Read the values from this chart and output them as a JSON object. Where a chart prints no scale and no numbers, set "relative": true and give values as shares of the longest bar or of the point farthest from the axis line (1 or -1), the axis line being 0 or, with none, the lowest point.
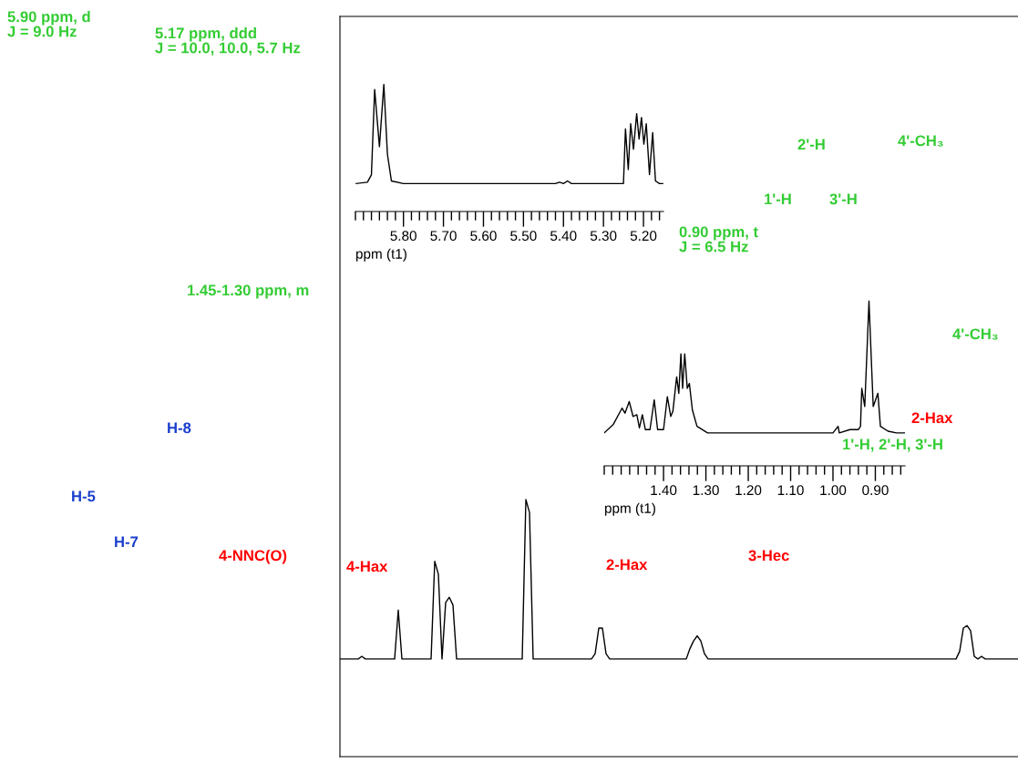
{
  "chart_data": [
    {
      "type": "line",
      "relative": true,
      "tick_labels": false,
      "color": "#000000",
      "categories": [
        null,
        null,
        null,
        null,
        null,
        null,
        null,
        null,
        null,
        null,
        null,
        null,
        null,
        null,
        null,
        null,
        null,
        null,
        null,
        null,
        null,
        null,
        null,
        null,
        null,
        null,
        null,
        null,
        null,
        null,
        null,
        null,
        null,
        null,
        null,
        null,
        null,
        null,
        null,
        null,
        null,
        null,
        null,
        null,
        null,
        null,
        null,
        null,
        null,
        null,
        null,
        null,
        null,
        null,
        null,
        null,
        null,
        null,
        null,
        null,
        null,
        null,
        null,
        null,
        null,
        null,
        null,
        null,
        null,
        null,
        null,
        null,
        null,
        null,
        null,
        null,
        null,
        null,
        null,
        null,
        null,
        null,
        null,
        null,
        null,
        null,
        null,
        null,
        null,
        null,
        null,
        null,
        null,
        null,
        null,
        null,
        null,
        null,
        null,
        null,
        null,
        null,
        null,
        null,
        null,
        null,
        null,
        null,
        null,
        null,
        null,
        null,
        null,
        null,
        null,
        null,
        null,
        null,
        null,
        null,
        null,
        null,
        null,
        null,
        null,
        null,
        null,
        null,
        null,
        null,
        null,
        null,
        null,
        null,
        null,
        null,
        null,
        null,
        null,
        null,
        null,
        null,
        null,
        null,
        null,
        null,
        null,
        null,
        null,
        null,
        null,
        null,
        null,
        null,
        null,
        null,
        null,
        null,
        null,
        null,
        null,
        null,
        null,
        null,
        null,
        null,
        null,
        null,
        null,
        null,
        null,
        null,
        null,
        null,
        null,
        null,
        null,
        null,
        null,
        null,
        null,
        null,
        null,
        null,
        null,
        null,
        null
      ],
      "values": [
        0.38,
        0.38,
        0.38,
        0.38,
        0.38,
        0.38,
        0.39,
        0.38,
        0.38,
        0.38,
        0.38,
        0.38,
        0.38,
        0.38,
        0.38,
        0.38,
        0.57,
        0.38,
        0.38,
        0.38,
        0.38,
        0.38,
        0.38,
        0.38,
        0.38,
        0.38,
        0.76,
        0.71,
        0.38,
        0.6,
        0.62,
        0.59,
        0.38,
        0.38,
        0.38,
        0.38,
        0.38,
        0.38,
        0.38,
        0.38,
        0.38,
        0.38,
        0.38,
        0.38,
        0.38,
        0.38,
        0.38,
        0.38,
        0.38,
        0.38,
        0.38,
        1.0,
        0.95,
        0.38,
        0.38,
        0.38,
        0.38,
        0.38,
        0.38,
        0.38,
        0.38,
        0.38,
        0.38,
        0.38,
        0.38,
        0.38,
        0.38,
        0.38,
        0.38,
        0.38,
        0.4,
        0.5,
        0.5,
        0.4,
        0.38,
        0.38,
        0.38,
        0.38,
        0.38,
        0.38,
        0.38,
        0.38,
        0.38,
        0.38,
        0.38,
        0.38,
        0.38,
        0.38,
        0.38,
        0.38,
        0.38,
        0.38,
        0.38,
        0.38,
        0.38,
        0.38,
        0.42,
        0.45,
        0.47,
        0.45,
        0.4,
        0.38,
        0.38,
        0.38,
        0.38,
        0.38,
        0.38,
        0.38,
        0.38,
        0.38,
        0.38,
        0.38,
        0.38,
        0.38,
        0.38,
        0.38,
        0.38,
        0.38,
        0.38,
        0.38,
        0.38,
        0.38,
        0.38,
        0.38,
        0.38,
        0.38,
        0.38,
        0.38,
        0.38,
        0.38,
        0.38,
        0.38,
        0.38,
        0.38,
        0.38,
        0.38,
        0.38,
        0.38,
        0.38,
        0.38,
        0.38,
        0.38,
        0.38,
        0.38,
        0.38,
        0.38,
        0.38,
        0.38,
        0.38,
        0.38,
        0.38,
        0.38,
        0.38,
        0.38,
        0.38,
        0.38,
        0.38,
        0.38,
        0.38,
        0.38,
        0.38,
        0.38,
        0.38,
        0.38,
        0.38,
        0.38,
        0.38,
        0.38,
        0.38,
        0.38,
        0.41,
        0.5,
        0.51,
        0.49,
        0.39,
        0.38,
        0.39,
        0.38,
        0.38,
        0.38,
        0.38,
        0.38,
        0.38,
        0.38,
        0.38,
        0.38,
        0.38
      ],
      "annotations": [
        "5.90 ppm, d\nJ = 9.0 Hz",
        "5.17 ppm, ddd\nJ = 10.0, 10.0, 5.7 Hz",
        "2'-H",
        "4'-CH₃",
        "1'-H",
        "3'-H",
        "0.90 ppm, t\nJ = 6.5 Hz",
        "1.45-1.30 ppm, m",
        "4'-CH₃",
        "H-8",
        "2-Hax",
        "1'-H, 2'-H, 3'-H",
        "H-5",
        "H-7",
        "4-NNC(O)",
        "4-Hax",
        "2-Hax",
        "3-Hec"
      ]
    },
    {
      "type": "line",
      "relative": true,
      "tick_labels": "x",
      "color": "#000000",
      "xlabel": "ppm (t1)",
      "xlim": [
        5.92,
        5.15
      ],
      "xticks": [
        {
          "value": 5.8,
          "label": "5.80"
        },
        {
          "value": 5.7,
          "label": "5.70"
        },
        {
          "value": 5.6,
          "label": "5.60"
        },
        {
          "value": 5.5,
          "label": "5.50"
        },
        {
          "value": 5.4,
          "label": "5.40"
        },
        {
          "value": 5.3,
          "label": "5.30"
        },
        {
          "value": 5.2,
          "label": "5.20"
        }
      ],
      "x": [
        5.918,
        5.89,
        5.88,
        5.872,
        5.86,
        5.849,
        5.84,
        5.83,
        5.8,
        5.7,
        5.6,
        5.5,
        5.42,
        5.41,
        5.4,
        5.39,
        5.38,
        5.3,
        5.25,
        5.245,
        5.238,
        5.232,
        5.225,
        5.217,
        5.211,
        5.205,
        5.199,
        5.193,
        5.185,
        5.177,
        5.17,
        5.16,
        5.152
      ],
      "values": [
        0.22,
        0.23,
        0.29,
        0.96,
        0.51,
        1.0,
        0.45,
        0.24,
        0.22,
        0.22,
        0.22,
        0.22,
        0.22,
        0.23,
        0.22,
        0.24,
        0.22,
        0.22,
        0.22,
        0.65,
        0.33,
        0.69,
        0.49,
        0.77,
        0.57,
        0.74,
        0.53,
        0.69,
        0.29,
        0.62,
        0.24,
        0.22,
        0.22
      ]
    },
    {
      "type": "line",
      "relative": true,
      "tick_labels": "x",
      "color": "#000000",
      "xlabel": "ppm (t1)",
      "xlim": [
        1.54,
        0.83
      ],
      "xticks": [
        {
          "value": 1.4,
          "label": "1.40"
        },
        {
          "value": 1.3,
          "label": "1.30"
        },
        {
          "value": 1.2,
          "label": "1.20"
        },
        {
          "value": 1.1,
          "label": "1.10"
        },
        {
          "value": 1.0,
          "label": "1.00"
        },
        {
          "value": 0.9,
          "label": "0.90"
        }
      ],
      "x": [
        1.54,
        1.519,
        1.498,
        1.491,
        1.481,
        1.472,
        1.463,
        1.457,
        1.45,
        1.443,
        1.432,
        1.422,
        1.414,
        1.4,
        1.391,
        1.383,
        1.378,
        1.369,
        1.364,
        1.359,
        1.355,
        1.35,
        1.344,
        1.339,
        1.332,
        1.321,
        1.296,
        1.281,
        1.0,
        0.988,
        0.985,
        0.96,
        0.94,
        0.935,
        0.932,
        0.925,
        0.915,
        0.905,
        0.894,
        0.888,
        0.87,
        0.85,
        0.83
      ],
      "values": [
        0.2,
        0.25,
        0.35,
        0.32,
        0.39,
        0.3,
        0.31,
        0.23,
        0.31,
        0.22,
        0.22,
        0.4,
        0.22,
        0.22,
        0.42,
        0.3,
        0.33,
        0.54,
        0.44,
        0.68,
        0.47,
        0.68,
        0.47,
        0.5,
        0.34,
        0.24,
        0.2,
        0.2,
        0.2,
        0.24,
        0.2,
        0.22,
        0.22,
        0.24,
        0.47,
        0.36,
        1.0,
        0.36,
        0.44,
        0.24,
        0.21,
        0.2,
        0.2
      ]
    }
  ]
}
